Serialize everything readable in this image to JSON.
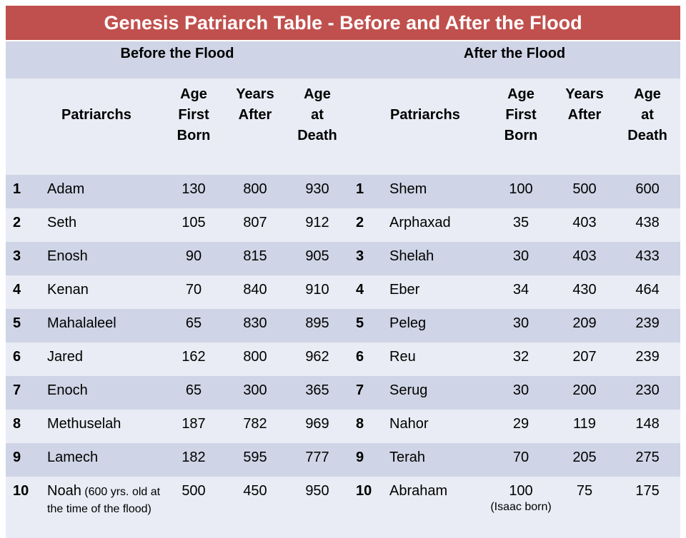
{
  "title": "Genesis Patriarch Table  - Before and After the Flood",
  "before": {
    "heading": "Before the Flood",
    "columns": {
      "patriarchs": "Patriarchs",
      "age_first_born": [
        "Age",
        "First",
        "Born"
      ],
      "years_after": [
        "Years",
        "After"
      ],
      "age_at_death": [
        "Age",
        "at",
        "Death"
      ]
    },
    "rows": [
      {
        "n": "1",
        "name": "Adam",
        "afb": "130",
        "ya": "800",
        "aad": "930"
      },
      {
        "n": "2",
        "name": "Seth",
        "afb": "105",
        "ya": "807",
        "aad": "912"
      },
      {
        "n": "3",
        "name": "Enosh",
        "afb": "90",
        "ya": "815",
        "aad": "905"
      },
      {
        "n": "4",
        "name": "Kenan",
        "afb": "70",
        "ya": "840",
        "aad": "910"
      },
      {
        "n": "5",
        "name": "Mahalaleel",
        "afb": "65",
        "ya": "830",
        "aad": "895"
      },
      {
        "n": "6",
        "name": "Jared",
        "afb": "162",
        "ya": "800",
        "aad": "962"
      },
      {
        "n": "7",
        "name": "Enoch",
        "afb": "65",
        "ya": "300",
        "aad": "365"
      },
      {
        "n": "8",
        "name": "Methuselah",
        "afb": "187",
        "ya": "782",
        "aad": "969"
      },
      {
        "n": "9",
        "name": "Lamech",
        "afb": "182",
        "ya": "595",
        "aad": "777"
      },
      {
        "n": "10",
        "name": "Noah",
        "note": " (600 yrs. old at the time of the flood)",
        "afb": "500",
        "ya": "450",
        "aad": "950"
      }
    ]
  },
  "after": {
    "heading": "After the Flood",
    "columns": {
      "patriarchs": "Patriarchs",
      "age_first_born": [
        "Age",
        "First",
        "Born"
      ],
      "years_after": [
        "Years",
        "After"
      ],
      "age_at_death": [
        "Age",
        "at",
        "Death"
      ]
    },
    "rows": [
      {
        "n": "1",
        "name": "Shem",
        "afb": "100",
        "ya": "500",
        "aad": "600"
      },
      {
        "n": "2",
        "name": "Arphaxad",
        "afb": "35",
        "ya": "403",
        "aad": "438"
      },
      {
        "n": "3",
        "name": "Shelah",
        "afb": "30",
        "ya": "403",
        "aad": "433"
      },
      {
        "n": "4",
        "name": "Eber",
        "afb": "34",
        "ya": "430",
        "aad": "464"
      },
      {
        "n": "5",
        "name": "Peleg",
        "afb": "30",
        "ya": "209",
        "aad": "239"
      },
      {
        "n": "6",
        "name": "Reu",
        "afb": "32",
        "ya": "207",
        "aad": "239"
      },
      {
        "n": "7",
        "name": "Serug",
        "afb": "30",
        "ya": "200",
        "aad": "230"
      },
      {
        "n": "8",
        "name": "Nahor",
        "afb": "29",
        "ya": "119",
        "aad": "148"
      },
      {
        "n": "9",
        "name": "Terah",
        "afb": "70",
        "ya": "205",
        "aad": "275"
      },
      {
        "n": "10",
        "name": "Abraham",
        "afb": "100",
        "afb_note": "(Isaac born)",
        "ya": "75",
        "aad": "175"
      }
    ]
  }
}
